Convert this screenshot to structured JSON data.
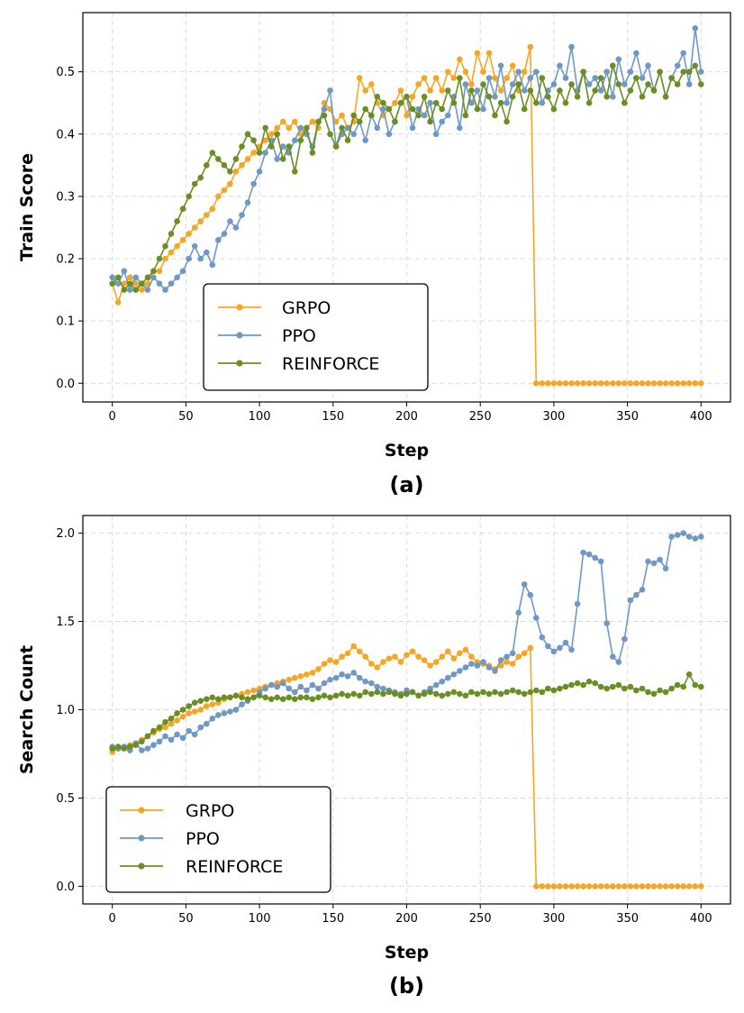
{
  "chart_data": [
    {
      "type": "line",
      "panel_label": "(a)",
      "xlabel": "Step",
      "ylabel": "Train Score",
      "xlim": [
        -20,
        420
      ],
      "ylim": [
        -0.03,
        0.595
      ],
      "xticks": [
        0,
        50,
        100,
        150,
        200,
        250,
        300,
        350,
        400
      ],
      "yticks": [
        0.0,
        0.1,
        0.2,
        0.3,
        0.4,
        0.5
      ],
      "ytick_labels": [
        "0.0",
        "0.1",
        "0.2",
        "0.3",
        "0.4",
        "0.5"
      ],
      "legend_position": "lower-center-left",
      "series": [
        {
          "name": "GRPO",
          "color": "#f5a623",
          "x_start": 0,
          "x_step": 4,
          "values": [
            0.16,
            0.13,
            0.16,
            0.17,
            0.16,
            0.15,
            0.16,
            0.18,
            0.18,
            0.2,
            0.21,
            0.22,
            0.23,
            0.24,
            0.25,
            0.26,
            0.27,
            0.28,
            0.3,
            0.31,
            0.32,
            0.34,
            0.35,
            0.36,
            0.37,
            0.38,
            0.39,
            0.4,
            0.41,
            0.42,
            0.41,
            0.42,
            0.4,
            0.41,
            0.42,
            0.41,
            0.45,
            0.44,
            0.42,
            0.43,
            0.41,
            0.42,
            0.49,
            0.47,
            0.48,
            0.45,
            0.43,
            0.44,
            0.45,
            0.47,
            0.43,
            0.46,
            0.48,
            0.49,
            0.47,
            0.49,
            0.47,
            0.5,
            0.49,
            0.52,
            0.5,
            0.48,
            0.53,
            0.5,
            0.53,
            0.49,
            0.47,
            0.49,
            0.51,
            0.47,
            0.5,
            0.54,
            0,
            0,
            0,
            0,
            0,
            0,
            0,
            0,
            0,
            0,
            0,
            0,
            0,
            0,
            0,
            0,
            0,
            0,
            0,
            0,
            0,
            0,
            0,
            0,
            0,
            0,
            0,
            0,
            0
          ]
        },
        {
          "name": "PPO",
          "color": "#6f98c6",
          "x_start": 0,
          "x_step": 4,
          "values": [
            0.17,
            0.16,
            0.18,
            0.15,
            0.17,
            0.16,
            0.15,
            0.17,
            0.16,
            0.15,
            0.16,
            0.17,
            0.18,
            0.2,
            0.22,
            0.2,
            0.21,
            0.19,
            0.23,
            0.24,
            0.26,
            0.25,
            0.27,
            0.29,
            0.32,
            0.34,
            0.37,
            0.39,
            0.36,
            0.38,
            0.37,
            0.39,
            0.41,
            0.4,
            0.38,
            0.42,
            0.44,
            0.47,
            0.38,
            0.4,
            0.41,
            0.4,
            0.42,
            0.39,
            0.43,
            0.41,
            0.44,
            0.4,
            0.42,
            0.45,
            0.46,
            0.41,
            0.44,
            0.43,
            0.45,
            0.4,
            0.42,
            0.43,
            0.46,
            0.41,
            0.48,
            0.45,
            0.47,
            0.44,
            0.49,
            0.46,
            0.51,
            0.45,
            0.48,
            0.5,
            0.47,
            0.49,
            0.5,
            0.45,
            0.47,
            0.48,
            0.51,
            0.49,
            0.54,
            0.47,
            0.5,
            0.48,
            0.49,
            0.47,
            0.5,
            0.46,
            0.52,
            0.48,
            0.5,
            0.53,
            0.49,
            0.51,
            0.47,
            0.5,
            0.46,
            0.49,
            0.51,
            0.53,
            0.48,
            0.57,
            0.5
          ]
        },
        {
          "name": "REINFORCE",
          "color": "#6b8e23",
          "x_start": 0,
          "x_step": 4,
          "values": [
            0.16,
            0.17,
            0.15,
            0.16,
            0.15,
            0.16,
            0.17,
            0.18,
            0.2,
            0.22,
            0.24,
            0.26,
            0.28,
            0.3,
            0.32,
            0.33,
            0.35,
            0.37,
            0.36,
            0.35,
            0.34,
            0.36,
            0.38,
            0.4,
            0.39,
            0.37,
            0.41,
            0.38,
            0.4,
            0.36,
            0.38,
            0.34,
            0.39,
            0.41,
            0.37,
            0.42,
            0.43,
            0.4,
            0.38,
            0.41,
            0.39,
            0.43,
            0.42,
            0.44,
            0.43,
            0.46,
            0.45,
            0.44,
            0.42,
            0.45,
            0.46,
            0.44,
            0.43,
            0.46,
            0.42,
            0.45,
            0.44,
            0.47,
            0.45,
            0.49,
            0.43,
            0.47,
            0.44,
            0.48,
            0.46,
            0.43,
            0.45,
            0.42,
            0.46,
            0.48,
            0.44,
            0.47,
            0.45,
            0.49,
            0.46,
            0.44,
            0.47,
            0.45,
            0.48,
            0.46,
            0.5,
            0.45,
            0.47,
            0.49,
            0.46,
            0.51,
            0.48,
            0.45,
            0.47,
            0.49,
            0.46,
            0.48,
            0.47,
            0.5,
            0.46,
            0.49,
            0.48,
            0.5,
            0.5,
            0.51,
            0.48
          ]
        }
      ]
    },
    {
      "type": "line",
      "panel_label": "(b)",
      "xlabel": "Step",
      "ylabel": "Search Count",
      "xlim": [
        -20,
        420
      ],
      "ylim": [
        -0.1,
        2.1
      ],
      "xticks": [
        0,
        50,
        100,
        150,
        200,
        250,
        300,
        350,
        400
      ],
      "yticks": [
        0.0,
        0.5,
        1.0,
        1.5,
        2.0
      ],
      "ytick_labels": [
        "0.0",
        "0.5",
        "1.0",
        "1.5",
        "2.0"
      ],
      "legend_position": "lower-left",
      "series": [
        {
          "name": "GRPO",
          "color": "#f5a623",
          "x_start": 0,
          "x_step": 4,
          "values": [
            0.76,
            0.78,
            0.79,
            0.8,
            0.81,
            0.83,
            0.85,
            0.87,
            0.89,
            0.9,
            0.92,
            0.94,
            0.96,
            0.98,
            0.99,
            1.0,
            1.02,
            1.03,
            1.04,
            1.06,
            1.07,
            1.08,
            1.09,
            1.1,
            1.11,
            1.12,
            1.13,
            1.14,
            1.15,
            1.16,
            1.17,
            1.18,
            1.19,
            1.2,
            1.21,
            1.23,
            1.26,
            1.28,
            1.27,
            1.3,
            1.32,
            1.36,
            1.33,
            1.3,
            1.26,
            1.24,
            1.27,
            1.29,
            1.3,
            1.27,
            1.31,
            1.33,
            1.3,
            1.28,
            1.25,
            1.27,
            1.3,
            1.33,
            1.29,
            1.32,
            1.34,
            1.3,
            1.27,
            1.26,
            1.25,
            1.23,
            1.25,
            1.27,
            1.26,
            1.3,
            1.32,
            1.35,
            0,
            0,
            0,
            0,
            0,
            0,
            0,
            0,
            0,
            0,
            0,
            0,
            0,
            0,
            0,
            0,
            0,
            0,
            0,
            0,
            0,
            0,
            0,
            0,
            0,
            0,
            0,
            0,
            0
          ]
        },
        {
          "name": "PPO",
          "color": "#6f98c6",
          "x_start": 0,
          "x_step": 4,
          "values": [
            0.79,
            0.78,
            0.79,
            0.77,
            0.81,
            0.77,
            0.78,
            0.8,
            0.82,
            0.85,
            0.83,
            0.86,
            0.84,
            0.88,
            0.86,
            0.9,
            0.92,
            0.95,
            0.97,
            0.98,
            0.99,
            1.0,
            1.03,
            1.05,
            1.07,
            1.1,
            1.12,
            1.14,
            1.13,
            1.15,
            1.12,
            1.1,
            1.13,
            1.11,
            1.14,
            1.12,
            1.15,
            1.17,
            1.18,
            1.2,
            1.19,
            1.21,
            1.18,
            1.16,
            1.15,
            1.13,
            1.12,
            1.11,
            1.1,
            1.09,
            1.11,
            1.1,
            1.08,
            1.1,
            1.12,
            1.14,
            1.16,
            1.18,
            1.2,
            1.22,
            1.24,
            1.26,
            1.25,
            1.27,
            1.24,
            1.22,
            1.28,
            1.3,
            1.32,
            1.55,
            1.71,
            1.65,
            1.52,
            1.41,
            1.36,
            1.33,
            1.35,
            1.38,
            1.34,
            1.6,
            1.89,
            1.88,
            1.86,
            1.84,
            1.49,
            1.3,
            1.27,
            1.4,
            1.62,
            1.65,
            1.68,
            1.84,
            1.83,
            1.85,
            1.8,
            1.98,
            1.99,
            2.0,
            1.98,
            1.97,
            1.98
          ]
        },
        {
          "name": "REINFORCE",
          "color": "#6b8e23",
          "x_start": 0,
          "x_step": 4,
          "values": [
            0.78,
            0.79,
            0.78,
            0.79,
            0.8,
            0.82,
            0.85,
            0.88,
            0.9,
            0.93,
            0.95,
            0.98,
            1.0,
            1.02,
            1.04,
            1.05,
            1.06,
            1.07,
            1.06,
            1.07,
            1.07,
            1.08,
            1.07,
            1.06,
            1.07,
            1.08,
            1.07,
            1.06,
            1.07,
            1.06,
            1.07,
            1.06,
            1.07,
            1.07,
            1.06,
            1.07,
            1.08,
            1.07,
            1.08,
            1.09,
            1.08,
            1.09,
            1.08,
            1.1,
            1.09,
            1.1,
            1.09,
            1.1,
            1.09,
            1.08,
            1.09,
            1.1,
            1.08,
            1.09,
            1.1,
            1.09,
            1.08,
            1.09,
            1.1,
            1.09,
            1.08,
            1.1,
            1.09,
            1.1,
            1.09,
            1.1,
            1.09,
            1.1,
            1.11,
            1.1,
            1.09,
            1.1,
            1.11,
            1.1,
            1.12,
            1.11,
            1.12,
            1.13,
            1.14,
            1.15,
            1.14,
            1.16,
            1.15,
            1.13,
            1.12,
            1.13,
            1.14,
            1.12,
            1.13,
            1.11,
            1.12,
            1.1,
            1.09,
            1.11,
            1.1,
            1.12,
            1.14,
            1.13,
            1.2,
            1.14,
            1.13
          ]
        }
      ]
    }
  ]
}
